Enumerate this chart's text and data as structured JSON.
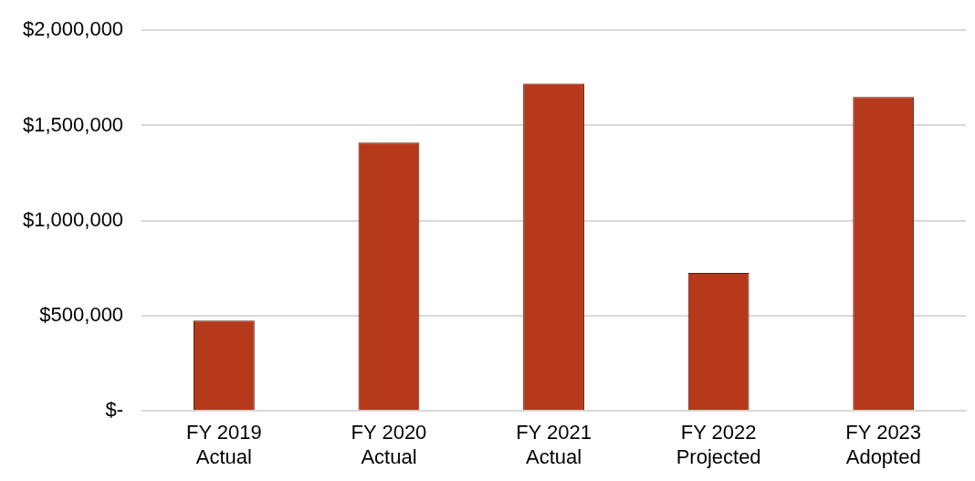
{
  "chart_data": {
    "type": "bar",
    "categories": [
      "FY 2019\nActual",
      "FY 2020\nActual",
      "FY 2021\nActual",
      "FY 2022\nProjected",
      "FY 2023\nAdopted"
    ],
    "values": [
      475000,
      1410000,
      1720000,
      725000,
      1650000
    ],
    "color": "#b5391a",
    "ylim": [
      0,
      2000000
    ],
    "yticks": [
      {
        "value": 0,
        "label": "$-"
      },
      {
        "value": 500000,
        "label": "$500,000"
      },
      {
        "value": 1000000,
        "label": "$1,000,000"
      },
      {
        "value": 1500000,
        "label": "$1,500,000"
      },
      {
        "value": 2000000,
        "label": "$2,000,000"
      }
    ],
    "grid": "y",
    "legend": false
  }
}
